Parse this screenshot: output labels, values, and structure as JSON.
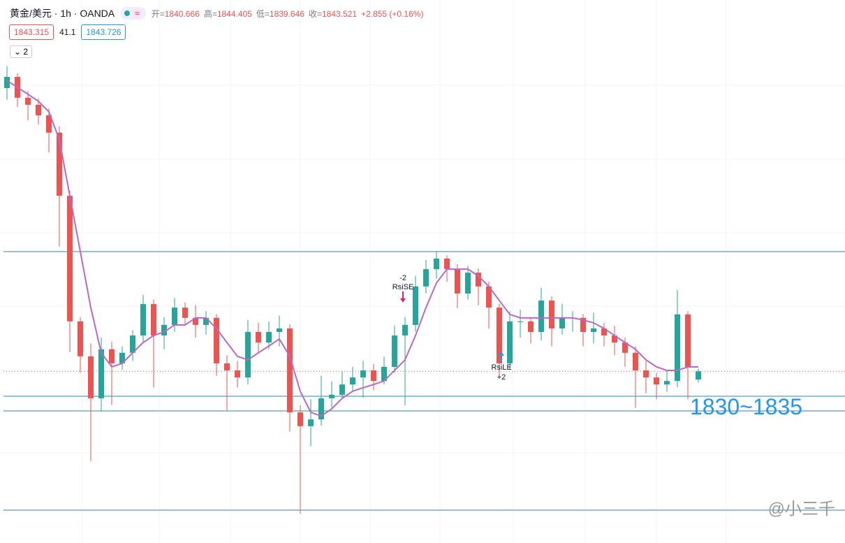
{
  "header": {
    "symbol": "黄金/美元 · 1h · OANDA",
    "ohlc": [
      {
        "label": "开=",
        "value": "1840.666"
      },
      {
        "label": "高=",
        "value": "1844.405"
      },
      {
        "label": "低=",
        "value": "1839.646"
      },
      {
        "label": "收=",
        "value": "1843.521"
      }
    ],
    "change": "+2.855 (+0.16%)",
    "bid": "1843.315",
    "spread": "41.1",
    "ask": "1843.726",
    "toggle": "2"
  },
  "chart_data": {
    "type": "candlestick",
    "ylim": [
      1785.0,
      1970.0
    ],
    "up_color": "#26a69a",
    "down_color": "#ef5350",
    "open": [
      1940.0,
      1943.8,
      1936.7,
      1934.3,
      1930.7,
      1924.8,
      1903.3,
      1860.5,
      1848.6,
      1834.3,
      1851.0,
      1846.2,
      1849.8,
      1855.7,
      1866.4,
      1855.7,
      1859.3,
      1865.2,
      1861.7,
      1859.3,
      1861.7,
      1846.2,
      1843.8,
      1841.4,
      1856.9,
      1853.3,
      1856.9,
      1858.1,
      1829.5,
      1824.8,
      1827.1,
      1834.3,
      1835.5,
      1839.0,
      1841.4,
      1843.8,
      1840.2,
      1845.0,
      1855.7,
      1859.3,
      1872.4,
      1878.3,
      1881.9,
      1878.3,
      1870.0,
      1877.1,
      1872.4,
      1865.2,
      1846.2,
      1860.5,
      1860.5,
      1856.9,
      1867.6,
      1858.1,
      1861.7,
      1861.7,
      1856.9,
      1858.1,
      1855.7,
      1853.3,
      1849.8,
      1843.8,
      1841.4,
      1839.0,
      1840.2,
      1862.9,
      1840.666
    ],
    "high": [
      1947.5,
      1945.0,
      1939.0,
      1936.5,
      1933.0,
      1927.0,
      1905.0,
      1862.0,
      1853.0,
      1855.0,
      1853.5,
      1852.0,
      1857.5,
      1869.5,
      1868.0,
      1862.0,
      1868.5,
      1867.0,
      1866.0,
      1864.0,
      1863.0,
      1849.0,
      1847.0,
      1861.0,
      1860.0,
      1860.5,
      1862.5,
      1859.5,
      1832.0,
      1834.0,
      1842.0,
      1840.0,
      1843.5,
      1845.0,
      1847.0,
      1846.0,
      1848.5,
      1859.0,
      1862.0,
      1876.0,
      1881.5,
      1884.3,
      1883.0,
      1880.0,
      1879.5,
      1878.5,
      1874.0,
      1866.5,
      1864.0,
      1864.5,
      1862.0,
      1872.0,
      1869.0,
      1866.5,
      1864.0,
      1863.0,
      1863.5,
      1860.0,
      1859.0,
      1855.0,
      1852.0,
      1847.0,
      1843.0,
      1844.0,
      1871.2,
      1864.0,
      1844.405
    ],
    "low": [
      1936.0,
      1933.5,
      1929.0,
      1927.5,
      1918.0,
      1886.0,
      1850.0,
      1843.0,
      1812.9,
      1830.0,
      1832.0,
      1844.0,
      1847.0,
      1853.0,
      1838.0,
      1851.0,
      1857.0,
      1859.0,
      1855.0,
      1856.0,
      1842.0,
      1830.0,
      1838.0,
      1839.0,
      1850.0,
      1851.0,
      1852.0,
      1823.0,
      1795.0,
      1818.0,
      1825.0,
      1831.0,
      1834.0,
      1836.5,
      1834.5,
      1837.0,
      1839.0,
      1843.0,
      1831.9,
      1857.0,
      1870.0,
      1875.0,
      1874.0,
      1865.0,
      1868.0,
      1866.0,
      1858.0,
      1841.0,
      1844.0,
      1855.0,
      1853.0,
      1854.0,
      1852.0,
      1856.0,
      1857.0,
      1852.0,
      1853.0,
      1852.0,
      1849.0,
      1845.0,
      1831.0,
      1836.0,
      1834.0,
      1836.5,
      1838.0,
      1834.0,
      1839.646
    ],
    "close": [
      1943.8,
      1936.7,
      1934.3,
      1930.7,
      1924.8,
      1903.3,
      1860.5,
      1848.6,
      1834.3,
      1851.0,
      1846.2,
      1849.8,
      1855.7,
      1866.4,
      1855.7,
      1859.3,
      1865.2,
      1861.7,
      1859.3,
      1861.7,
      1846.2,
      1843.8,
      1841.4,
      1856.9,
      1853.3,
      1856.9,
      1858.1,
      1829.5,
      1824.8,
      1827.1,
      1834.3,
      1835.5,
      1839.0,
      1841.4,
      1843.8,
      1840.2,
      1845.0,
      1855.7,
      1859.3,
      1872.4,
      1878.3,
      1881.9,
      1878.3,
      1870.0,
      1877.1,
      1872.4,
      1865.2,
      1846.2,
      1860.5,
      1860.5,
      1856.9,
      1867.6,
      1858.1,
      1861.7,
      1861.7,
      1856.9,
      1858.1,
      1855.7,
      1853.3,
      1849.8,
      1843.8,
      1841.4,
      1839.0,
      1840.2,
      1862.9,
      1845.0,
      1843.521
    ],
    "ma": {
      "color": "#ba68c8",
      "values": [
        1942.6,
        1940.2,
        1937.9,
        1935.5,
        1931.9,
        1922.4,
        1903.3,
        1884.3,
        1865.2,
        1849.8,
        1845.0,
        1846.2,
        1849.8,
        1853.3,
        1855.7,
        1856.9,
        1859.3,
        1859.3,
        1861.7,
        1861.7,
        1858.1,
        1853.3,
        1848.6,
        1847.4,
        1849.8,
        1852.1,
        1854.5,
        1848.6,
        1836.7,
        1829.5,
        1828.3,
        1830.7,
        1834.3,
        1836.7,
        1837.9,
        1839.0,
        1840.2,
        1843.8,
        1847.4,
        1855.7,
        1865.2,
        1873.6,
        1878.3,
        1878.3,
        1878.3,
        1876.0,
        1872.4,
        1867.6,
        1862.9,
        1861.7,
        1861.7,
        1861.7,
        1861.7,
        1861.7,
        1861.7,
        1861.0,
        1860.0,
        1858.1,
        1855.7,
        1853.3,
        1851.0,
        1847.4,
        1845.0,
        1843.8,
        1843.8,
        1845.0,
        1845.0
      ]
    },
    "levels": [
      1884.3,
      1835.0,
      1830.0,
      1796.2
    ],
    "level_color": "#2e86ab",
    "range_label": "1830~1835",
    "signals": [
      {
        "qty": "-2",
        "label": "RsiSE"
      },
      {
        "label": "RsiLE",
        "qty": "+2"
      }
    ]
  },
  "watermark": "@小三千"
}
